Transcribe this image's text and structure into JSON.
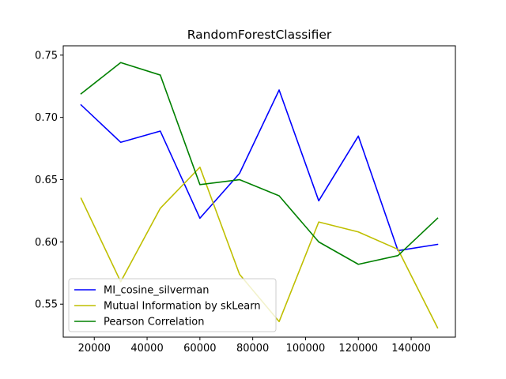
{
  "chart_data": {
    "type": "line",
    "title": "RandomForestClassifier",
    "xlabel": "",
    "ylabel": "",
    "xlim": [
      8250,
      156750
    ],
    "ylim": [
      0.5235,
      0.7575
    ],
    "xticks": [
      20000,
      40000,
      60000,
      80000,
      100000,
      120000,
      140000
    ],
    "xtick_labels": [
      "20000",
      "40000",
      "60000",
      "80000",
      "100000",
      "120000",
      "140000"
    ],
    "yticks": [
      0.55,
      0.6,
      0.65,
      0.7,
      0.75
    ],
    "ytick_labels": [
      "0.55",
      "0.60",
      "0.65",
      "0.70",
      "0.75"
    ],
    "grid": false,
    "legend_position": "lower-left",
    "x": [
      15000,
      30000,
      45000,
      60000,
      75000,
      90000,
      105000,
      120000,
      135000,
      150000
    ],
    "series": [
      {
        "name": "MI_cosine_silverman",
        "color": "#0000ff",
        "values": [
          0.71,
          0.68,
          0.689,
          0.619,
          0.655,
          0.722,
          0.633,
          0.685,
          0.593,
          0.598
        ]
      },
      {
        "name": "Mutual Information by skLearn",
        "color": "#bfbf00",
        "values": [
          0.635,
          0.568,
          0.627,
          0.66,
          0.574,
          0.536,
          0.616,
          0.608,
          0.594,
          0.531
        ]
      },
      {
        "name": "Pearson Correlation",
        "color": "#008000",
        "values": [
          0.719,
          0.744,
          0.734,
          0.646,
          0.65,
          0.637,
          0.6,
          0.582,
          0.589,
          0.619
        ]
      }
    ]
  }
}
